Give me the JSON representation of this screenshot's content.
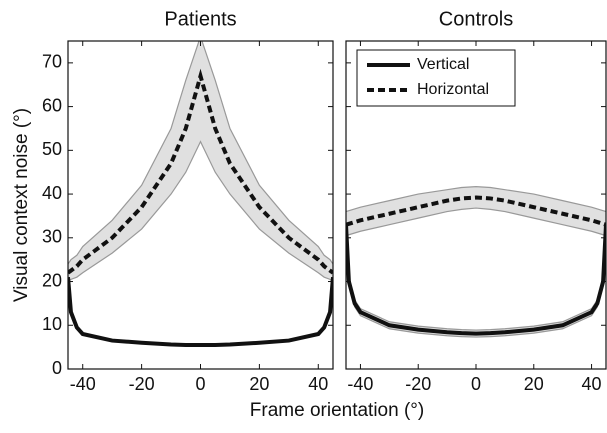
{
  "xlabel": "Frame orientation (°)",
  "ylabel": "Visual context noise (°)",
  "chart_data": [
    {
      "type": "line",
      "title": "Patients",
      "x": [
        -45,
        -44,
        -42,
        -40,
        -30,
        -20,
        -10,
        -5,
        0,
        5,
        10,
        20,
        30,
        40,
        42,
        44,
        45
      ],
      "xlim": [
        -45,
        45
      ],
      "xticks": [
        -40,
        -20,
        0,
        20,
        40
      ],
      "ylim": [
        0,
        75
      ],
      "yticks": [
        0,
        10,
        20,
        30,
        40,
        50,
        60,
        70
      ],
      "series": [
        {
          "name": "Vertical",
          "color": "#111111",
          "style": "solid",
          "values": [
            21,
            13,
            9.5,
            8,
            6.5,
            6,
            5.6,
            5.5,
            5.5,
            5.5,
            5.6,
            6,
            6.5,
            8,
            9.5,
            13,
            21
          ]
        },
        {
          "name": "Horizontal",
          "color": "#111111",
          "style": "dashed",
          "values": [
            22,
            22.5,
            23.5,
            25,
            30,
            37,
            47,
            55,
            67,
            55,
            47,
            37,
            30,
            25,
            23.5,
            22.5,
            22
          ],
          "band": {
            "color": "#e0e0e0",
            "upper": [
              24,
              25,
              26,
              28,
              34,
              42,
              55,
              66,
              76,
              66,
              55,
              42,
              34,
              28,
              26,
              25,
              24
            ],
            "lower": [
              20,
              20.5,
              21,
              22,
              26.5,
              32,
              40,
              45,
              52,
              45,
              40,
              32,
              26.5,
              22,
              21,
              20.5,
              20
            ]
          }
        }
      ]
    },
    {
      "type": "line",
      "title": "Controls",
      "sharey": true,
      "legend": "upper left",
      "x": [
        -45,
        -44,
        -42,
        -40,
        -30,
        -20,
        -10,
        -5,
        0,
        5,
        10,
        20,
        30,
        40,
        42,
        44,
        45
      ],
      "xlim": [
        -45,
        45
      ],
      "xticks": [
        -40,
        -20,
        0,
        20,
        40
      ],
      "ylim": [
        0,
        75
      ],
      "series": [
        {
          "name": "Vertical",
          "color": "#111111",
          "style": "solid",
          "values": [
            33,
            20,
            15,
            13,
            10,
            9,
            8.4,
            8.2,
            8.1,
            8.2,
            8.4,
            9,
            10,
            13,
            15,
            20,
            33
          ],
          "band": {
            "color": "#e0e0e0",
            "upper": [
              34,
              21,
              15.8,
              13.8,
              10.8,
              9.8,
              9.2,
              9,
              8.9,
              9,
              9.2,
              9.8,
              10.8,
              13.8,
              15.8,
              21,
              34
            ],
            "lower": [
              32,
              19,
              14.2,
              12.2,
              9.2,
              8.2,
              7.6,
              7.4,
              7.3,
              7.4,
              7.6,
              8.2,
              9.2,
              12.2,
              14.2,
              19,
              32
            ]
          }
        },
        {
          "name": "Horizontal",
          "color": "#111111",
          "style": "dashed",
          "values": [
            33,
            33.2,
            33.6,
            34,
            35.5,
            37,
            38.5,
            39,
            39.2,
            39,
            38.5,
            37,
            35.5,
            34,
            33.6,
            33.2,
            33
          ],
          "band": {
            "color": "#e0e0e0",
            "upper": [
              36,
              36.2,
              36.6,
              37,
              38.5,
              40,
              41,
              41.5,
              41.7,
              41.5,
              41,
              40,
              38.5,
              37,
              36.6,
              36.2,
              36
            ],
            "lower": [
              30.5,
              30.7,
              31.1,
              31.5,
              33,
              34.5,
              36,
              36.5,
              36.8,
              36.5,
              36,
              34.5,
              33,
              31.5,
              31.1,
              30.7,
              30.5
            ]
          }
        }
      ]
    }
  ]
}
